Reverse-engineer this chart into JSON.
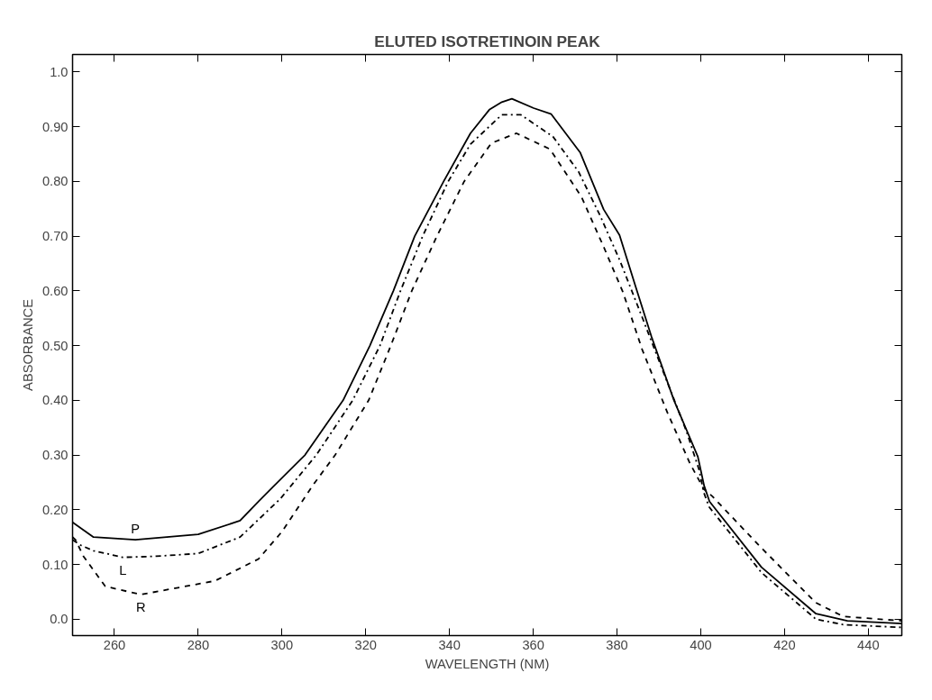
{
  "chart_data": {
    "type": "line",
    "title": "ELUTED ISOTRETINOIN PEAK",
    "xlabel": "WAVELENGTH (NM)",
    "ylabel": "ABSORBANCE",
    "xlim": [
      250,
      448
    ],
    "ylim": [
      -0.03,
      1.032
    ],
    "xticks": [
      260,
      280,
      300,
      320,
      340,
      360,
      380,
      400,
      420,
      440
    ],
    "yticks": [
      {
        "value": 0,
        "label": "0.0"
      },
      {
        "value": 0.1,
        "label": "0.10"
      },
      {
        "value": 0.2,
        "label": "0.20"
      },
      {
        "value": 0.3,
        "label": "0.30"
      },
      {
        "value": 0.4,
        "label": "0.40"
      },
      {
        "value": 0.5,
        "label": "0.50"
      },
      {
        "value": 0.6,
        "label": "0.60"
      },
      {
        "value": 0.7,
        "label": "0.70"
      },
      {
        "value": 0.8,
        "label": "0.80"
      },
      {
        "value": 0.9,
        "label": "0.90"
      },
      {
        "value": 1.0,
        "label": "1.0"
      }
    ],
    "grid": false,
    "legend": false,
    "series": [
      {
        "name": "P",
        "color": "#000000",
        "line_style": "solid",
        "x": [
          250,
          255,
          265,
          280,
          290,
          294.4,
          297.6,
          305.5,
          314.6,
          321,
          326.6,
          331.7,
          338.6,
          345,
          349.5,
          352.5,
          354.9,
          360.1,
          364.3,
          371.2,
          376.8,
          380.6,
          384.4,
          388.2,
          393.6,
          399.3,
          400.8,
          402.1,
          414.5,
          427.5,
          435,
          448
        ],
        "values": [
          0.177,
          0.15,
          0.145,
          0.155,
          0.18,
          0.215,
          0.24,
          0.3,
          0.4,
          0.5,
          0.6,
          0.7,
          0.8,
          0.888,
          0.931,
          0.945,
          0.951,
          0.934,
          0.923,
          0.853,
          0.749,
          0.702,
          0.609,
          0.517,
          0.4,
          0.297,
          0.244,
          0.215,
          0.095,
          0.01,
          -0.003,
          -0.008
        ]
      },
      {
        "name": "L",
        "color": "#000000",
        "line_style": "dashdot",
        "x": [
          250,
          252,
          255,
          258,
          262,
          270,
          280,
          290,
          299.6,
          308.2,
          316.9,
          323.4,
          328.3,
          333.6,
          339.7,
          345,
          352.5,
          357,
          364.7,
          370.8,
          376,
          380.7,
          386,
          391.3,
          396.6,
          399.6,
          400.7,
          402,
          414.5,
          427.5,
          434,
          448
        ],
        "values": [
          0.145,
          0.135,
          0.125,
          0.12,
          0.113,
          0.115,
          0.12,
          0.15,
          0.22,
          0.3,
          0.4,
          0.5,
          0.6,
          0.7,
          0.8,
          0.868,
          0.922,
          0.922,
          0.882,
          0.818,
          0.737,
          0.655,
          0.552,
          0.447,
          0.343,
          0.273,
          0.232,
          0.205,
          0.085,
          0.0,
          -0.01,
          -0.015
        ]
      },
      {
        "name": "R",
        "color": "#000000",
        "line_style": "dashed",
        "x": [
          250,
          250.7,
          252.6,
          257.8,
          266.3,
          284,
          294.4,
          300,
          307.4,
          312.7,
          320.7,
          326,
          331,
          337,
          343.5,
          350,
          356,
          364,
          371.5,
          376.9,
          381.4,
          386,
          392,
          397.4,
          400.7,
          402.7,
          414.5,
          427.5,
          434,
          448
        ],
        "values": [
          0.15,
          0.145,
          0.115,
          0.06,
          0.045,
          0.07,
          0.11,
          0.16,
          0.245,
          0.3,
          0.4,
          0.5,
          0.6,
          0.7,
          0.8,
          0.87,
          0.888,
          0.859,
          0.772,
          0.679,
          0.598,
          0.493,
          0.378,
          0.285,
          0.238,
          0.225,
          0.13,
          0.03,
          0.005,
          -0.003
        ]
      }
    ]
  }
}
